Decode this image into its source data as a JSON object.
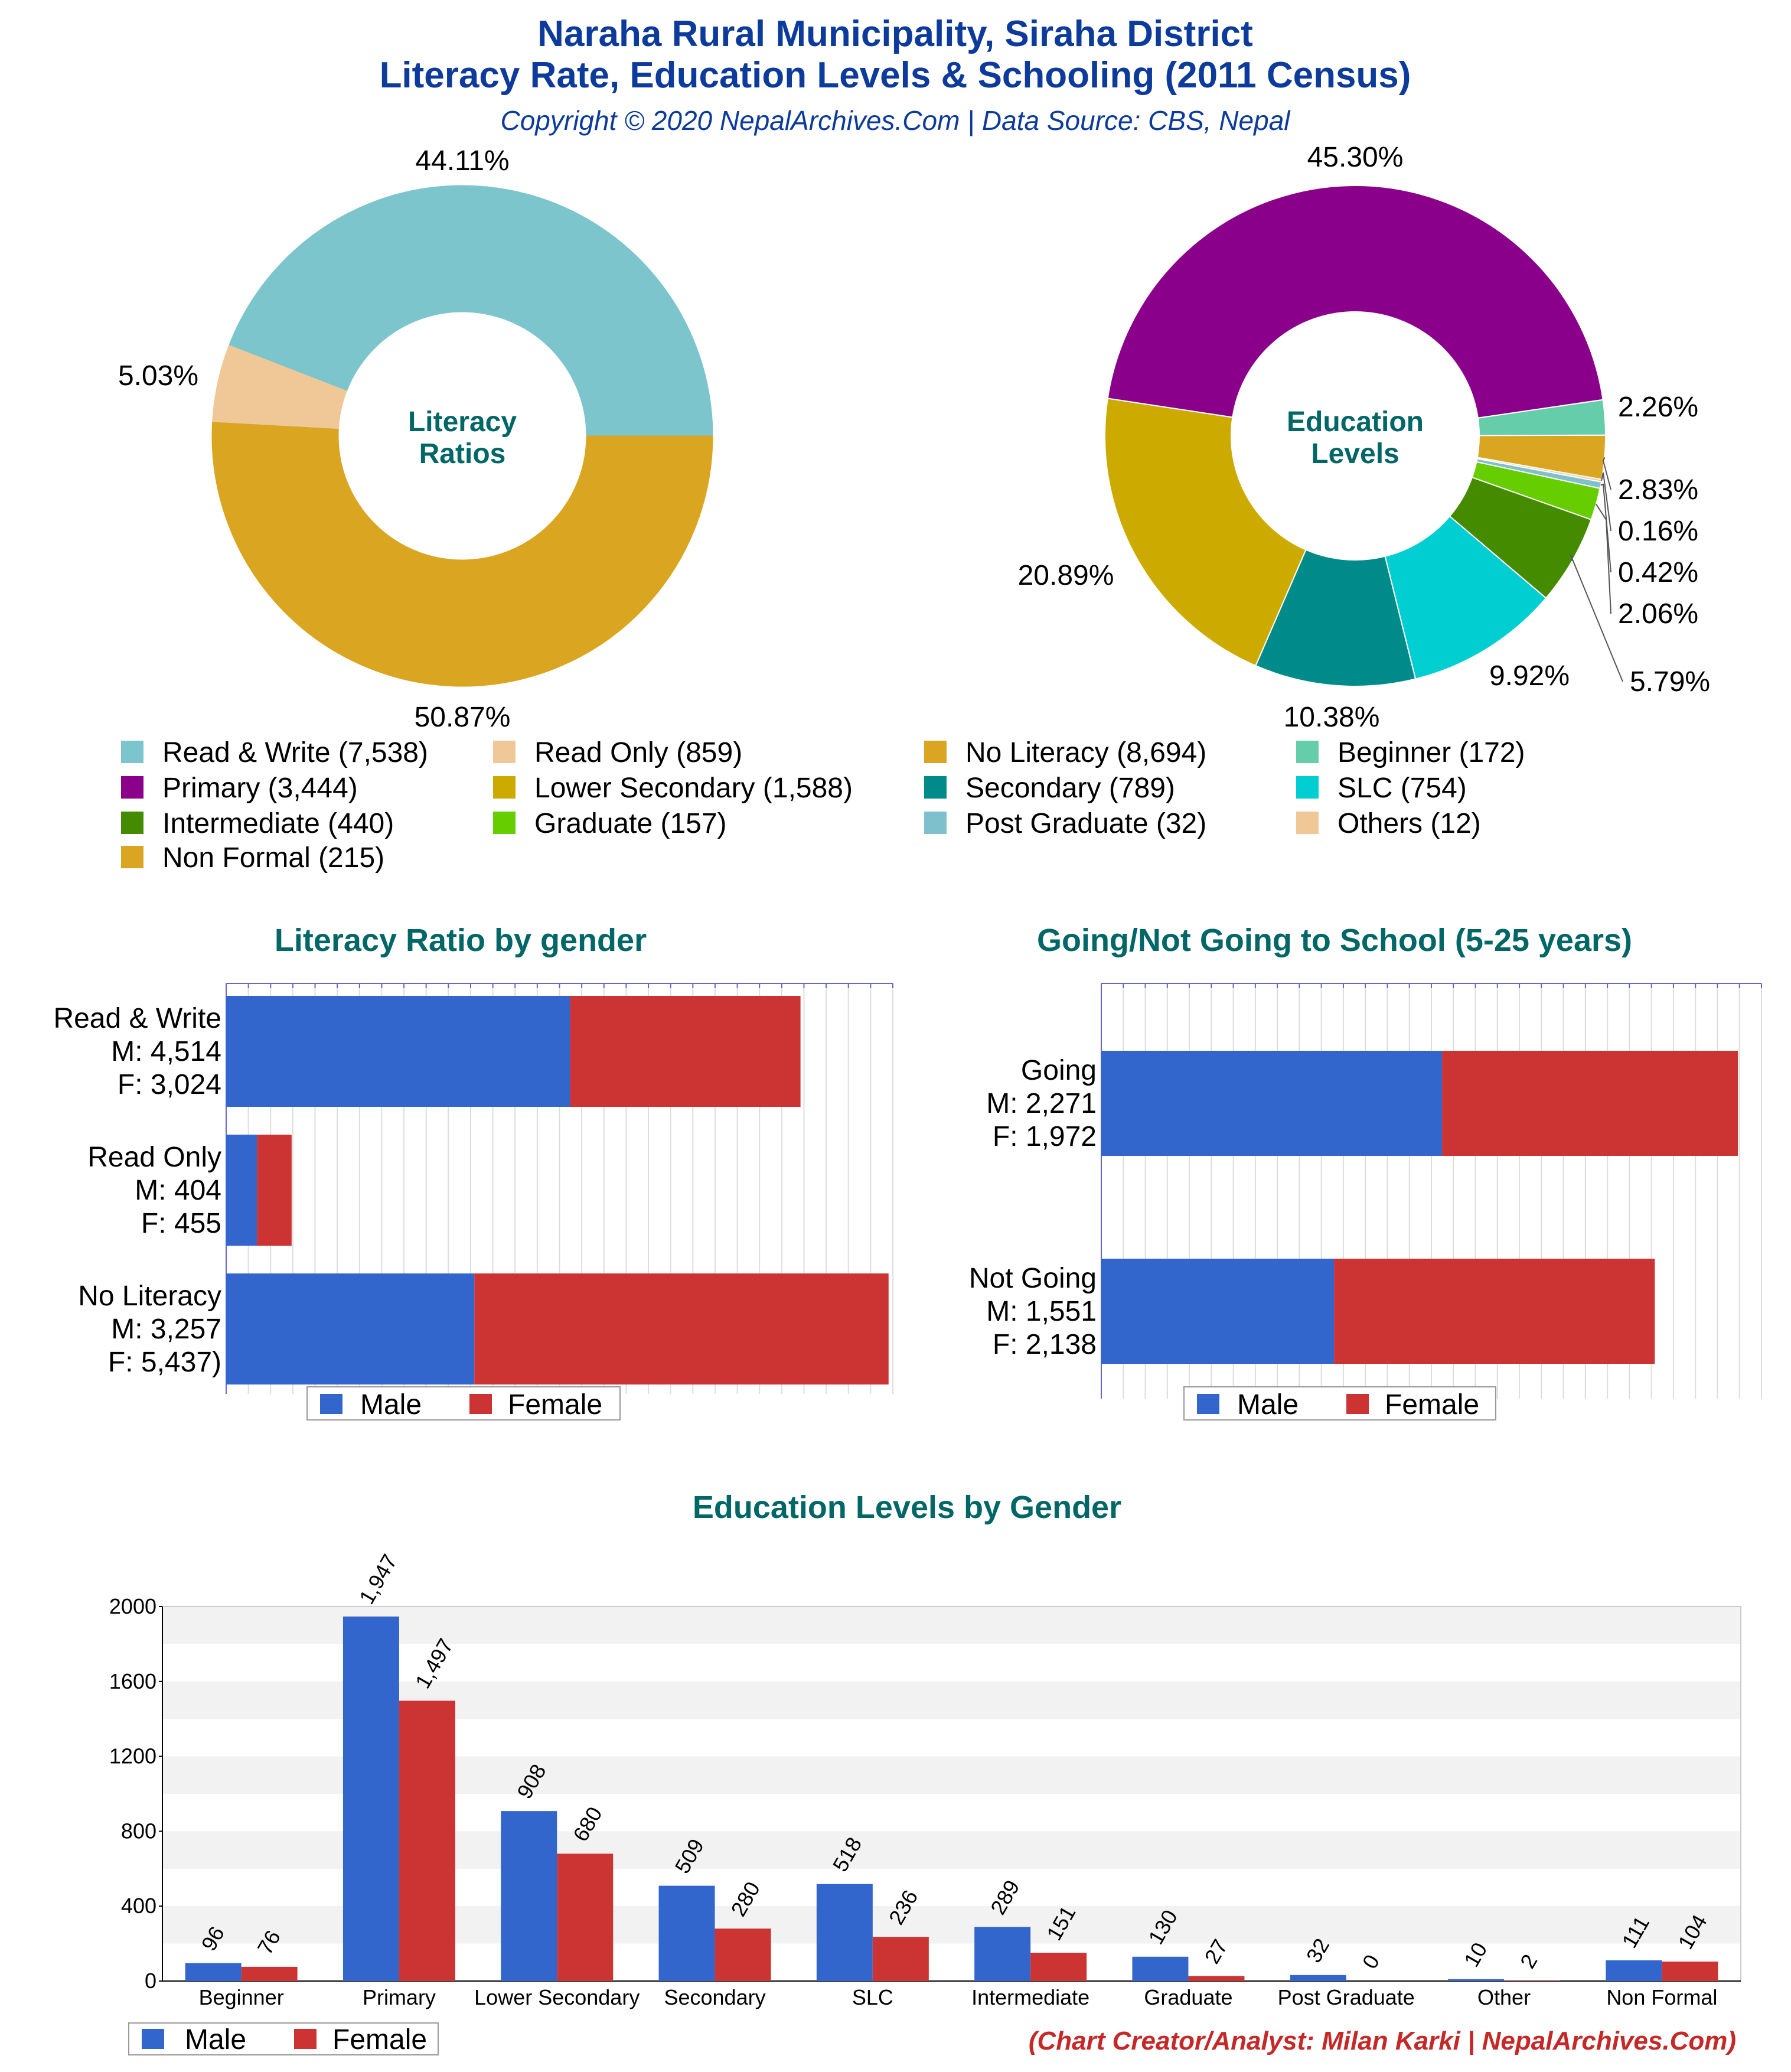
{
  "header": {
    "title_line1": "Naraha Rural Municipality, Siraha District",
    "title_line2": "Literacy Rate, Education Levels & Schooling (2011 Census)",
    "copyright": "Copyright © 2020 NepalArchives.Com | Data Source: CBS, Nepal"
  },
  "footer": {
    "credit": "(Chart Creator/Analyst: Milan Karki | NepalArchives.Com)"
  },
  "legend_pie": [
    {
      "label": "Read & Write (7,538)",
      "color": "#7cc5cc"
    },
    {
      "label": "Read Only (859)",
      "color": "#f0c898"
    },
    {
      "label": "No Literacy (8,694)",
      "color": "#daa520"
    },
    {
      "label": "Beginner (172)",
      "color": "#66cdaa"
    },
    {
      "label": "Primary (3,444)",
      "color": "#8b008b"
    },
    {
      "label": "Lower Secondary (1,588)",
      "color": "#ccaa00"
    },
    {
      "label": "Secondary (789)",
      "color": "#008b8b"
    },
    {
      "label": "SLC (754)",
      "color": "#00ced1"
    },
    {
      "label": "Intermediate (440)",
      "color": "#458b00"
    },
    {
      "label": "Graduate (157)",
      "color": "#66cd00"
    },
    {
      "label": "Post Graduate (32)",
      "color": "#7ec0cc"
    },
    {
      "label": "Others (12)",
      "color": "#f0c898"
    },
    {
      "label": "Non Formal (215)",
      "color": "#daa520"
    }
  ],
  "chart_data": [
    {
      "type": "pie",
      "center_label": [
        "Literacy",
        "Ratios"
      ],
      "slices": [
        {
          "name": "Read & Write",
          "value": 7538,
          "pct_label": "44.11%",
          "color": "#7cc5cc"
        },
        {
          "name": "No Literacy",
          "value": 8694,
          "pct_label": "50.87%",
          "color": "#daa520"
        },
        {
          "name": "Read Only",
          "value": 859,
          "pct_label": "5.03%",
          "color": "#f0c898"
        }
      ]
    },
    {
      "type": "pie",
      "center_label": [
        "Education",
        "Levels"
      ],
      "slices": [
        {
          "name": "Beginner",
          "value": 172,
          "pct_label": "2.26%",
          "color": "#66cdaa"
        },
        {
          "name": "Non Formal",
          "value": 215,
          "pct_label": "2.83%",
          "color": "#daa520"
        },
        {
          "name": "Others",
          "value": 12,
          "pct_label": "0.16%",
          "color": "#f0c898"
        },
        {
          "name": "Post Graduate",
          "value": 32,
          "pct_label": "0.42%",
          "color": "#7ec0cc"
        },
        {
          "name": "Graduate",
          "value": 157,
          "pct_label": "2.06%",
          "color": "#66cd00"
        },
        {
          "name": "Intermediate",
          "value": 440,
          "pct_label": "5.79%",
          "color": "#458b00"
        },
        {
          "name": "SLC",
          "value": 754,
          "pct_label": "9.92%",
          "color": "#00ced1"
        },
        {
          "name": "Secondary",
          "value": 789,
          "pct_label": "10.38%",
          "color": "#008b8b"
        },
        {
          "name": "Lower Secondary",
          "value": 1588,
          "pct_label": "20.89%",
          "color": "#ccaa00"
        },
        {
          "name": "Primary",
          "value": 3444,
          "pct_label": "45.30%",
          "color": "#8b008b"
        }
      ]
    },
    {
      "type": "bar",
      "orientation": "horizontal-stacked",
      "title": "Literacy Ratio by gender",
      "categories": [
        {
          "label": [
            "Read & Write",
            "M: 4,514",
            "F: 3,024"
          ],
          "male": 4514,
          "female": 3024
        },
        {
          "label": [
            "Read Only",
            "M: 404",
            "F: 455"
          ],
          "male": 404,
          "female": 455
        },
        {
          "label": [
            "No Literacy",
            "M: 3,257",
            "F: 5,437)"
          ],
          "male": 3257,
          "female": 5437
        }
      ],
      "xlim": [
        0,
        8750
      ],
      "legend": [
        "Male",
        "Female"
      ],
      "colors": {
        "male": "#3366cc",
        "female": "#cc3333"
      }
    },
    {
      "type": "bar",
      "orientation": "horizontal-stacked",
      "title": "Going/Not Going to School (5-25 years)",
      "categories": [
        {
          "label": [
            "Going",
            "M: 2,271",
            "F: 1,972"
          ],
          "male": 2271,
          "female": 1972
        },
        {
          "label": [
            "Not Going",
            "M: 1,551",
            "F: 2,138"
          ],
          "male": 1551,
          "female": 2138
        }
      ],
      "xlim": [
        0,
        4400
      ],
      "legend": [
        "Male",
        "Female"
      ],
      "colors": {
        "male": "#3366cc",
        "female": "#cc3333"
      }
    },
    {
      "type": "bar",
      "title": "Education Levels by Gender",
      "categories": [
        "Beginner",
        "Primary",
        "Lower Secondary",
        "Secondary",
        "SLC",
        "Intermediate",
        "Graduate",
        "Post Graduate",
        "Other",
        "Non Formal"
      ],
      "series": [
        {
          "name": "Male",
          "values": [
            96,
            1947,
            908,
            509,
            518,
            289,
            130,
            32,
            10,
            111
          ],
          "labels": [
            "96",
            "1,947",
            "908",
            "509",
            "518",
            "289",
            "130",
            "32",
            "10",
            "111"
          ]
        },
        {
          "name": "Female",
          "values": [
            76,
            1497,
            680,
            280,
            236,
            151,
            27,
            0,
            2,
            104
          ],
          "labels": [
            "76",
            "1,497",
            "680",
            "280",
            "236",
            "151",
            "27",
            "0",
            "2",
            "104"
          ]
        }
      ],
      "ylim": [
        0,
        2000
      ],
      "yticks": [
        "0",
        "400",
        "800",
        "1200",
        "1600",
        "2000"
      ],
      "legend": [
        "Male",
        "Female"
      ],
      "colors": {
        "male": "#3366cc",
        "female": "#cc3333"
      }
    }
  ]
}
